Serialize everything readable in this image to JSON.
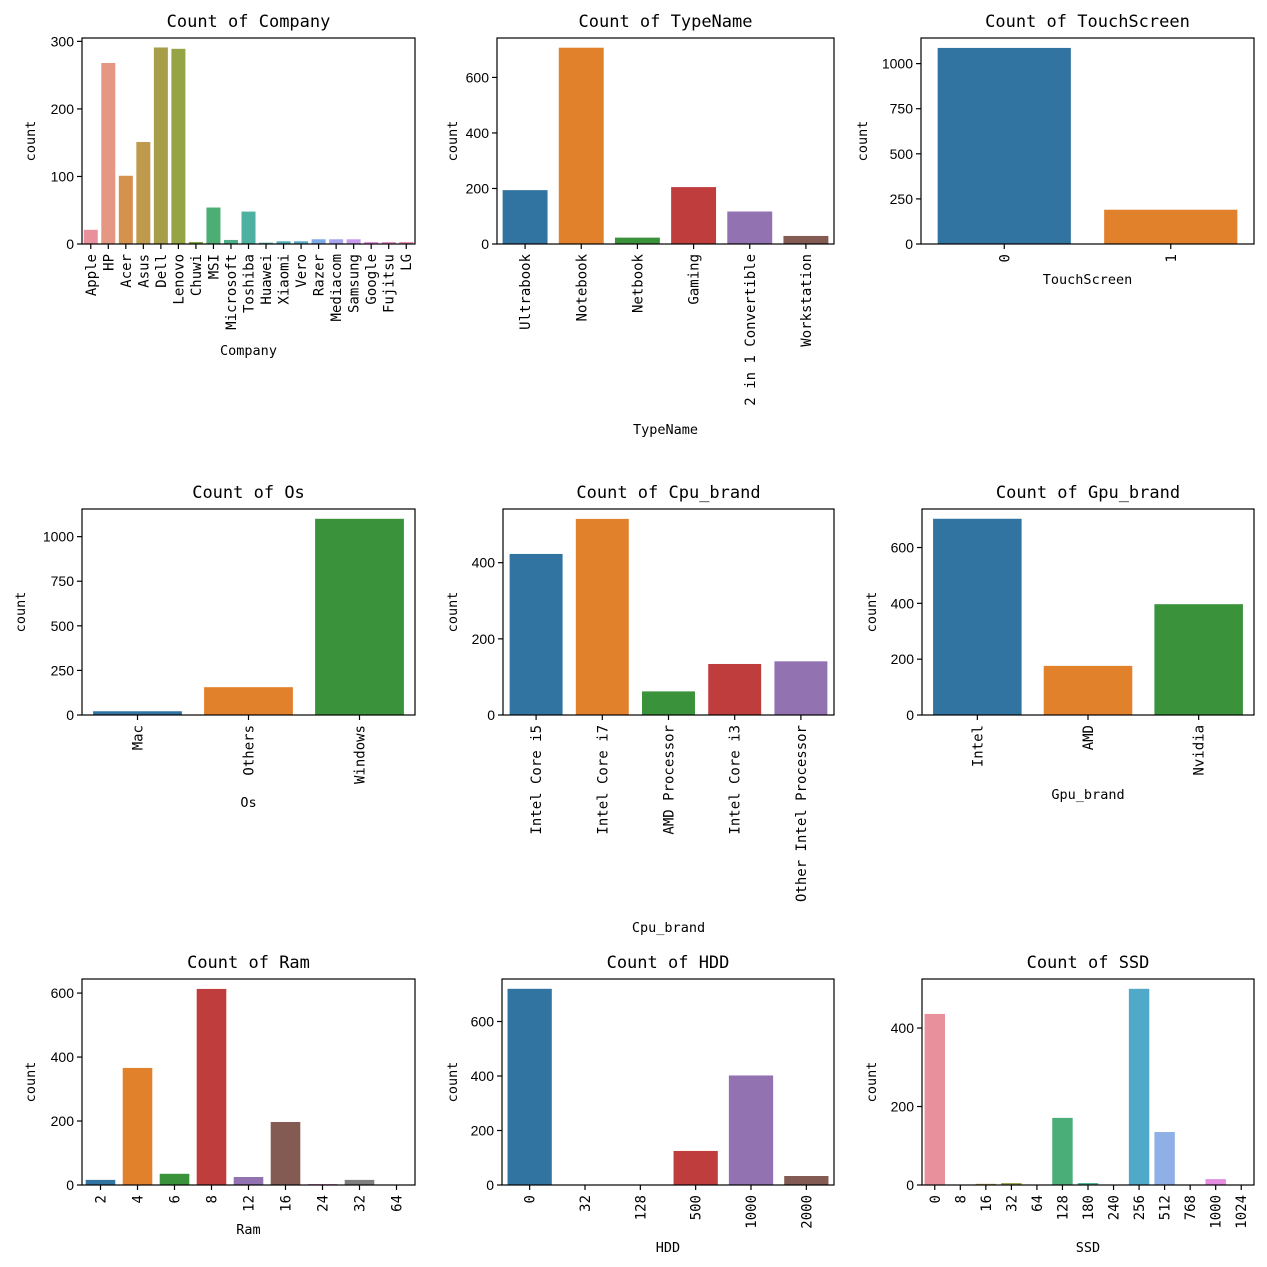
{
  "chart_data": [
    {
      "type": "bar",
      "title": "Count of Company",
      "xlabel": "Company",
      "ylabel": "count",
      "ylim": [
        0,
        305
      ],
      "yticks": [
        0,
        100,
        200,
        300
      ],
      "categories": [
        "Apple",
        "HP",
        "Acer",
        "Asus",
        "Dell",
        "Lenovo",
        "Chuwi",
        "MSI",
        "Microsoft",
        "Toshiba",
        "Huawei",
        "Xiaomi",
        "Vero",
        "Razer",
        "Mediacom",
        "Samsung",
        "Google",
        "Fujitsu",
        "LG"
      ],
      "values": [
        21,
        268,
        101,
        151,
        291,
        289,
        3,
        54,
        6,
        48,
        2,
        4,
        4,
        7,
        7,
        7,
        3,
        3,
        3
      ],
      "colors": [
        "#e8919c",
        "#e69783",
        "#d5924d",
        "#bf9a4c",
        "#a89e49",
        "#95a444",
        "#7ea745",
        "#4cae72",
        "#4caf8a",
        "#4db0a0",
        "#4eadac",
        "#50aebc",
        "#52aac8",
        "#7fa8e6",
        "#a7a3ef",
        "#c89aee",
        "#e48fe0",
        "#e890cc",
        "#e891b5"
      ],
      "xtick_rotation": 90
    },
    {
      "type": "bar",
      "title": "Count of TypeName",
      "xlabel": "TypeName",
      "ylabel": "count",
      "ylim": [
        0,
        742
      ],
      "yticks": [
        0,
        200,
        400,
        600
      ],
      "categories": [
        "Ultrabook",
        "Notebook",
        "Netbook",
        "Gaming",
        "2 in 1 Convertible",
        "Workstation"
      ],
      "values": [
        194,
        707,
        23,
        205,
        117,
        29
      ],
      "colors": [
        "#3274a1",
        "#e1812c",
        "#3a923a",
        "#c03d3e",
        "#9372b2",
        "#845b53"
      ],
      "xtick_rotation": 90
    },
    {
      "type": "bar",
      "title": "Count of TouchScreen",
      "xlabel": "TouchScreen",
      "ylabel": "count",
      "ylim": [
        0,
        1142
      ],
      "yticks": [
        0,
        250,
        500,
        750,
        1000
      ],
      "categories": [
        "0",
        "1"
      ],
      "values": [
        1087,
        190
      ],
      "colors": [
        "#3274a1",
        "#e1812c"
      ],
      "xtick_rotation": 90
    },
    {
      "type": "bar",
      "title": "Count of Os",
      "xlabel": "Os",
      "ylabel": "count",
      "ylim": [
        0,
        1155
      ],
      "yticks": [
        0,
        250,
        500,
        750,
        1000
      ],
      "categories": [
        "Mac",
        "Others",
        "Windows"
      ],
      "values": [
        21,
        156,
        1100
      ],
      "colors": [
        "#3274a1",
        "#e1812c",
        "#3a923a"
      ],
      "xtick_rotation": 90
    },
    {
      "type": "bar",
      "title": "Count of Cpu_brand",
      "xlabel": "Cpu_brand",
      "ylabel": "count",
      "ylim": [
        0,
        541
      ],
      "yticks": [
        0,
        200,
        400
      ],
      "categories": [
        "Intel Core i5",
        "Intel Core i7",
        "AMD Processor",
        "Intel Core i3",
        "Other Intel Processor"
      ],
      "values": [
        423,
        515,
        62,
        134,
        141
      ],
      "colors": [
        "#3274a1",
        "#e1812c",
        "#3a923a",
        "#c03d3e",
        "#9372b2"
      ],
      "xtick_rotation": 90
    },
    {
      "type": "bar",
      "title": "Count of Gpu_brand",
      "xlabel": "Gpu_brand",
      "ylabel": "count",
      "ylim": [
        0,
        738
      ],
      "yticks": [
        0,
        200,
        400,
        600
      ],
      "categories": [
        "Intel",
        "AMD",
        "Nvidia"
      ],
      "values": [
        703,
        176,
        397
      ],
      "colors": [
        "#3274a1",
        "#e1812c",
        "#3a923a"
      ],
      "xtick_rotation": 90
    },
    {
      "type": "bar",
      "title": "Count of Ram",
      "xlabel": "Ram",
      "ylabel": "count",
      "ylim": [
        0,
        644
      ],
      "yticks": [
        0,
        200,
        400,
        600
      ],
      "categories": [
        "2",
        "4",
        "6",
        "8",
        "12",
        "16",
        "24",
        "32",
        "64"
      ],
      "values": [
        16,
        366,
        35,
        613,
        25,
        197,
        3,
        16,
        1
      ],
      "colors": [
        "#3274a1",
        "#e1812c",
        "#3a923a",
        "#c03d3e",
        "#9372b2",
        "#845b53",
        "#d684bd",
        "#7f7f7f",
        "#a9aa35"
      ],
      "xtick_rotation": 90
    },
    {
      "type": "bar",
      "title": "Count of HDD",
      "xlabel": "HDD",
      "ylabel": "count",
      "ylim": [
        0,
        756
      ],
      "yticks": [
        0,
        200,
        400,
        600
      ],
      "categories": [
        "0",
        "32",
        "128",
        "500",
        "1000",
        "2000"
      ],
      "values": [
        720,
        1,
        1,
        125,
        402,
        33
      ],
      "colors": [
        "#3274a1",
        "#e1812c",
        "#3a923a",
        "#c03d3e",
        "#9372b2",
        "#845b53"
      ],
      "xtick_rotation": 90
    },
    {
      "type": "bar",
      "title": "Count of SSD",
      "xlabel": "SSD",
      "ylabel": "count",
      "ylim": [
        0,
        525
      ],
      "yticks": [
        0,
        200,
        400
      ],
      "categories": [
        "0",
        "8",
        "16",
        "32",
        "64",
        "128",
        "180",
        "240",
        "256",
        "512",
        "768",
        "1000",
        "1024"
      ],
      "values": [
        436,
        1,
        3,
        5,
        1,
        171,
        5,
        1,
        500,
        135,
        1,
        15,
        1
      ],
      "colors": [
        "#e8919c",
        "#d89453",
        "#b69b4a",
        "#9aa145",
        "#6ea845",
        "#4aae79",
        "#4caf99",
        "#4eacae",
        "#50a9c8",
        "#8fb0e6",
        "#b89ef0",
        "#e48de3",
        "#e98fbf"
      ],
      "xtick_rotation": 90
    }
  ]
}
